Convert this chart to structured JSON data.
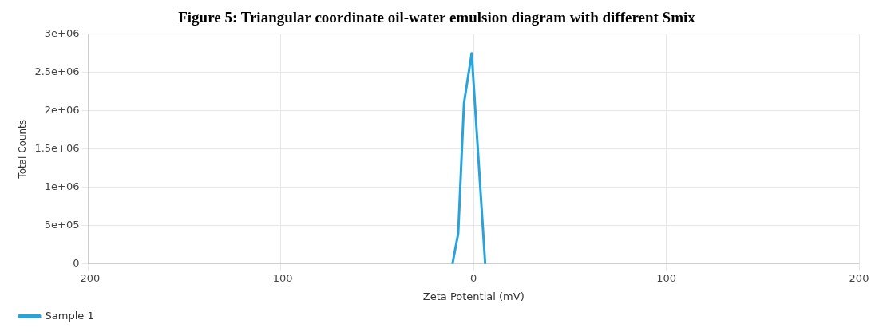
{
  "chart_data": {
    "type": "line",
    "title": "Figure 5: Triangular coordinate oil-water emulsion diagram with different Smix",
    "xlabel": "Zeta Potential (mV)",
    "ylabel": "Total Counts",
    "series": [
      {
        "name": "Sample 1",
        "color": "#29a3d9",
        "x": [
          -11,
          -8,
          -5,
          -1,
          6
        ],
        "values": [
          0,
          400000,
          2100000,
          2750000,
          0
        ]
      }
    ],
    "xlim": [
      -200,
      200
    ],
    "xticks": [
      -200,
      -100,
      0,
      100,
      200
    ],
    "ylim": [
      0,
      3000000
    ],
    "yticks": [
      {
        "value": 0,
        "label": "0"
      },
      {
        "value": 500000,
        "label": "5e+05"
      },
      {
        "value": 1000000,
        "label": "1e+06"
      },
      {
        "value": 1500000,
        "label": "1.5e+06"
      },
      {
        "value": 2000000,
        "label": "2e+06"
      },
      {
        "value": 2500000,
        "label": "2.5e+06"
      },
      {
        "value": 3000000,
        "label": "3e+06"
      }
    ],
    "grid": true,
    "legend": "bottom left",
    "marker": "none",
    "line_style": "solid"
  }
}
